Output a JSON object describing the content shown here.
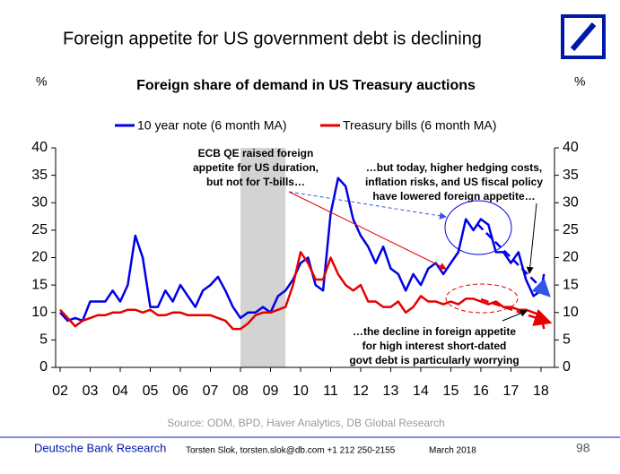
{
  "header": {
    "title": "Foreign appetite for US government debt is declining"
  },
  "footer": {
    "brand": "Deutsche Bank Research",
    "contact": "Torsten Slok, torsten.slok@db.com +1 212 250-2155",
    "date": "March 2018",
    "page": "98"
  },
  "chart_data": {
    "type": "line",
    "title": "Foreign share of demand in US Treasury auctions",
    "ylabel": "%",
    "y2label": "%",
    "source": "Source: ODM, BPD, Haver Analytics, DB Global Research",
    "legend": "top",
    "x": [
      2002,
      2002.25,
      2002.5,
      2002.75,
      2003,
      2003.25,
      2003.5,
      2003.75,
      2004,
      2004.25,
      2004.5,
      2004.75,
      2005,
      2005.25,
      2005.5,
      2005.75,
      2006,
      2006.25,
      2006.5,
      2006.75,
      2007,
      2007.25,
      2007.5,
      2007.75,
      2008,
      2008.25,
      2008.5,
      2008.75,
      2009,
      2009.25,
      2009.5,
      2009.75,
      2010,
      2010.25,
      2010.5,
      2010.75,
      2011,
      2011.25,
      2011.5,
      2011.75,
      2012,
      2012.25,
      2012.5,
      2012.75,
      2013,
      2013.25,
      2013.5,
      2013.75,
      2014,
      2014.25,
      2014.5,
      2014.75,
      2015,
      2015.25,
      2015.5,
      2015.75,
      2016,
      2016.25,
      2016.5,
      2016.75,
      2017,
      2017.25,
      2017.5,
      2017.75,
      2018,
      2018.1
    ],
    "series": [
      {
        "name": "10 year note (6 month MA)",
        "color": "#0000e6",
        "values": [
          10,
          8.5,
          9,
          8.5,
          12,
          12,
          12,
          14,
          12,
          15,
          24,
          20,
          11,
          11,
          14,
          12,
          15,
          13,
          11,
          14,
          15,
          16.5,
          14,
          11,
          9,
          10,
          10,
          11,
          10,
          13,
          14,
          16,
          19,
          20,
          15,
          14,
          28,
          34.5,
          33,
          27,
          24,
          22,
          19,
          22,
          18,
          17,
          14,
          17,
          15,
          18,
          19,
          17,
          19,
          21,
          27,
          25,
          27,
          26,
          21,
          21,
          19,
          21,
          16,
          13,
          14,
          17
        ]
      },
      {
        "name": "Treasury bills (6 month MA)",
        "color": "#e60000",
        "values": [
          10.5,
          9,
          7.5,
          8.5,
          9,
          9.5,
          9.5,
          10,
          10,
          10.5,
          10.5,
          10,
          10.5,
          9.5,
          9.5,
          10,
          10,
          9.5,
          9.5,
          9.5,
          9.5,
          9,
          8.5,
          7,
          7,
          8,
          9.5,
          10,
          10,
          10.5,
          11,
          15,
          21,
          19,
          16,
          16,
          20,
          17,
          15,
          14,
          15,
          12,
          12,
          11,
          11,
          12,
          10,
          11,
          13,
          12,
          12,
          11.5,
          12,
          11.5,
          12.5,
          12.5,
          12,
          11.5,
          12,
          11,
          11,
          10.5,
          10.5,
          10,
          9.5,
          7
        ]
      }
    ],
    "shaded_period": [
      2008,
      2009.5
    ],
    "xlim": [
      2001.85,
      2018.45
    ],
    "xticks": [
      {
        "value": 2002,
        "label": "02"
      },
      {
        "value": 2003,
        "label": "03"
      },
      {
        "value": 2004,
        "label": "04"
      },
      {
        "value": 2005,
        "label": "05"
      },
      {
        "value": 2006,
        "label": "06"
      },
      {
        "value": 2007,
        "label": "07"
      },
      {
        "value": 2008,
        "label": "08"
      },
      {
        "value": 2009,
        "label": "09"
      },
      {
        "value": 2010,
        "label": "10"
      },
      {
        "value": 2011,
        "label": "11"
      },
      {
        "value": 2012,
        "label": "12"
      },
      {
        "value": 2013,
        "label": "13"
      },
      {
        "value": 2014,
        "label": "14"
      },
      {
        "value": 2015,
        "label": "15"
      },
      {
        "value": 2016,
        "label": "16"
      },
      {
        "value": 2017,
        "label": "17"
      },
      {
        "value": 2018,
        "label": "18"
      }
    ],
    "ylim": [
      0,
      40
    ],
    "yticks": [
      0,
      5,
      10,
      15,
      20,
      25,
      30,
      35,
      40
    ],
    "y2lim": [
      0,
      40
    ],
    "y2ticks": [
      0,
      5,
      10,
      15,
      20,
      25,
      30,
      35,
      40
    ],
    "annotations": [
      {
        "lines": [
          "ECB QE raised foreign",
          "appetite for US duration,",
          "but not for T-bills…"
        ]
      },
      {
        "lines": [
          "…but today, higher hedging costs,",
          "inflation risks, and US fiscal policy",
          "have lowered foreign appetite…"
        ]
      },
      {
        "lines": [
          "…the decline in foreign appetite",
          "for high interest short-dated",
          "govt debt is particularly worrying"
        ]
      }
    ]
  }
}
